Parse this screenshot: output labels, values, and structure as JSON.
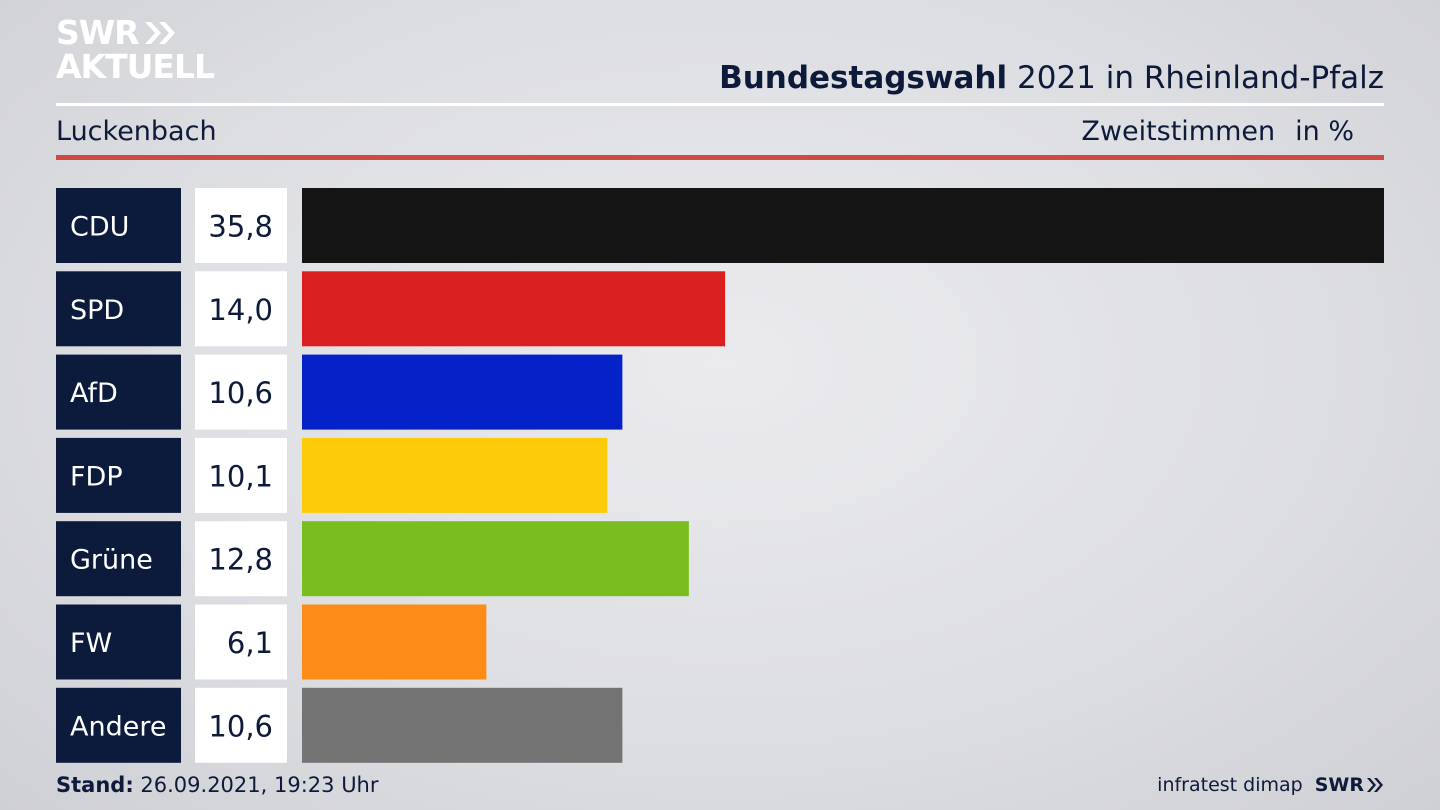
{
  "brand": {
    "line1": "SWR",
    "line2": "AKTUELL"
  },
  "header": {
    "title_bold": "Bundestagswahl",
    "title_rest": "2021 in Rheinland-Pfalz",
    "subtitle": "Luckenbach",
    "measure": "Zweitstimmen",
    "unit": "in %"
  },
  "footer": {
    "stand_label": "Stand:",
    "stand_value": "26.09.2021, 19:23 Uhr",
    "source": "infratest dimap",
    "broadcaster": "SWR"
  },
  "colors": {
    "label_box": "#0c1a3c",
    "value_box": "#ffffff",
    "accent_rule": "#d24a3f"
  },
  "chart_data": {
    "type": "bar",
    "orientation": "horizontal",
    "categories": [
      "CDU",
      "SPD",
      "AfD",
      "FDP",
      "Grüne",
      "FW",
      "Andere"
    ],
    "values": [
      35.8,
      14.0,
      10.6,
      10.1,
      12.8,
      6.1,
      10.6
    ],
    "value_labels": [
      "35,8",
      "14,0",
      "10,6",
      "10,1",
      "12,8",
      "6,1",
      "10,6"
    ],
    "colors": [
      "#141414",
      "#d91f1f",
      "#0522c9",
      "#fdcb0a",
      "#79be1e",
      "#fd8c17",
      "#737373"
    ],
    "xlim": [
      0,
      35.8
    ],
    "grid": false,
    "legend": "none"
  }
}
